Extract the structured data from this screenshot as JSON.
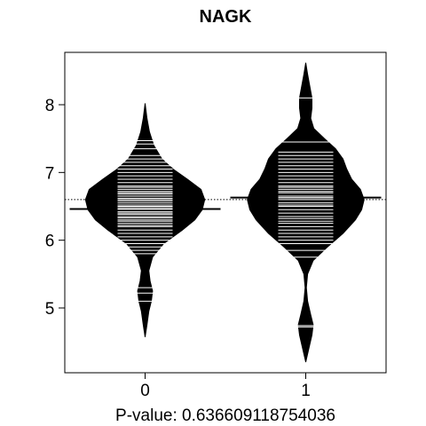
{
  "chart_data": {
    "type": "beanplot",
    "title": "NAGK",
    "xlabel": "P-value: 0.636609118754036",
    "ylabel": "",
    "categories": [
      "0",
      "1"
    ],
    "yticks": [
      5,
      6,
      7,
      8
    ],
    "ylim": [
      4.1,
      8.8
    ],
    "xlim": [
      0.5,
      2.5
    ],
    "overall_mean": 6.6,
    "groups": [
      {
        "name": "0",
        "mean": 6.46,
        "density": [
          [
            4.57,
            0
          ],
          [
            4.75,
            0.03
          ],
          [
            4.95,
            0.06
          ],
          [
            5.1,
            0.1
          ],
          [
            5.25,
            0.12
          ],
          [
            5.4,
            0.08
          ],
          [
            5.55,
            0.06
          ],
          [
            5.75,
            0.12
          ],
          [
            5.95,
            0.3
          ],
          [
            6.15,
            0.6
          ],
          [
            6.3,
            0.8
          ],
          [
            6.45,
            0.92
          ],
          [
            6.6,
            0.96
          ],
          [
            6.75,
            0.9
          ],
          [
            6.9,
            0.68
          ],
          [
            7.05,
            0.45
          ],
          [
            7.2,
            0.27
          ],
          [
            7.4,
            0.14
          ],
          [
            7.6,
            0.07
          ],
          [
            7.8,
            0.03
          ],
          [
            8.02,
            0
          ]
        ],
        "points": [
          5.1,
          5.22,
          5.3,
          5.8,
          5.85,
          5.9,
          5.95,
          6.0,
          6.05,
          6.1,
          6.15,
          6.2,
          6.22,
          6.25,
          6.28,
          6.3,
          6.33,
          6.35,
          6.38,
          6.4,
          6.42,
          6.45,
          6.48,
          6.5,
          6.52,
          6.55,
          6.58,
          6.6,
          6.62,
          6.65,
          6.68,
          6.7,
          6.72,
          6.75,
          6.78,
          6.8,
          6.85,
          6.9,
          6.95,
          7.0,
          7.05,
          7.1,
          7.15,
          7.2,
          7.25,
          7.35,
          7.42,
          7.47
        ]
      },
      {
        "name": "1",
        "mean": 6.63,
        "density": [
          [
            4.2,
            0
          ],
          [
            4.4,
            0.05
          ],
          [
            4.6,
            0.1
          ],
          [
            4.75,
            0.12
          ],
          [
            4.9,
            0.08
          ],
          [
            5.1,
            0.03
          ],
          [
            5.3,
            0.01
          ],
          [
            5.5,
            0.03
          ],
          [
            5.7,
            0.12
          ],
          [
            5.9,
            0.35
          ],
          [
            6.1,
            0.6
          ],
          [
            6.3,
            0.8
          ],
          [
            6.45,
            0.9
          ],
          [
            6.6,
            0.94
          ],
          [
            6.75,
            0.88
          ],
          [
            6.9,
            0.74
          ],
          [
            7.05,
            0.66
          ],
          [
            7.2,
            0.6
          ],
          [
            7.35,
            0.48
          ],
          [
            7.5,
            0.3
          ],
          [
            7.65,
            0.13
          ],
          [
            7.8,
            0.08
          ],
          [
            7.95,
            0.1
          ],
          [
            8.1,
            0.1
          ],
          [
            8.3,
            0.06
          ],
          [
            8.45,
            0.03
          ],
          [
            8.62,
            0
          ]
        ],
        "points": [
          4.72,
          4.74,
          5.75,
          5.85,
          5.95,
          6.0,
          6.05,
          6.1,
          6.15,
          6.2,
          6.25,
          6.28,
          6.32,
          6.35,
          6.4,
          6.45,
          6.5,
          6.52,
          6.55,
          6.6,
          6.62,
          6.65,
          6.7,
          6.72,
          6.75,
          6.78,
          6.8,
          6.85,
          6.9,
          6.95,
          7.0,
          7.05,
          7.1,
          7.15,
          7.2,
          7.25,
          7.3,
          7.45,
          8.1
        ]
      }
    ]
  }
}
